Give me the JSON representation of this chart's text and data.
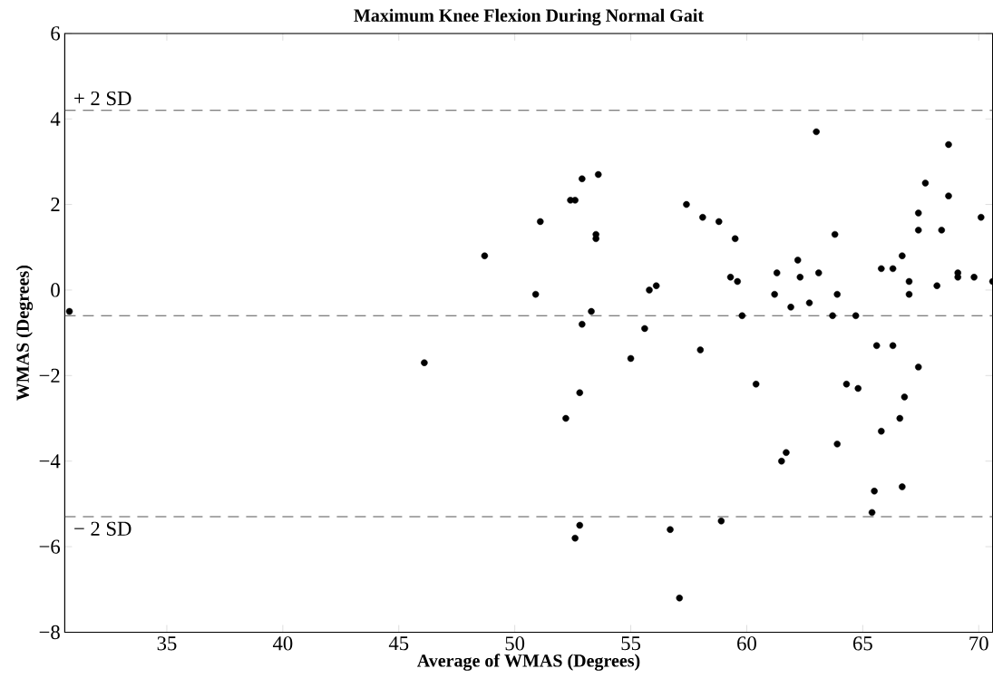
{
  "chart_data": {
    "type": "scatter",
    "title": "Maximum Knee Flexion During Normal Gait",
    "xlabel": "Average of WMAS (Degrees)",
    "ylabel": "WMAS (Degrees)",
    "xlim": [
      30.6,
      70.6
    ],
    "ylim": [
      -8,
      6
    ],
    "xticks": [
      35,
      40,
      45,
      50,
      55,
      60,
      65,
      70
    ],
    "yticks": [
      {
        "value": -8,
        "label": "−8"
      },
      {
        "value": -6,
        "label": "−6"
      },
      {
        "value": -4,
        "label": "−4"
      },
      {
        "value": -2,
        "label": "−2"
      },
      0,
      2,
      4,
      6
    ],
    "marker": "circle",
    "grid": false,
    "ref_lines": [
      {
        "axis": "y",
        "value": 4.2,
        "label": "+ 2 SD",
        "color": "#555555",
        "line_style": "dashed"
      },
      {
        "axis": "y",
        "value": -0.6,
        "color": "#555555",
        "line_style": "dashed"
      },
      {
        "axis": "y",
        "value": -5.3,
        "label": "− 2 SD",
        "color": "#555555",
        "line_style": "dashed"
      }
    ],
    "series": [
      {
        "color": "#000000",
        "x": [
          30.8,
          48.7,
          46.1,
          51.1,
          50.9,
          52.4,
          52.6,
          52.9,
          53.6,
          53.5,
          53.5,
          53.3,
          52.9,
          55.8,
          56.1,
          55.6,
          55.0,
          58.0,
          57.4,
          58.1,
          58.8,
          59.5,
          59.3,
          59.6,
          59.8,
          61.3,
          61.2,
          61.9,
          62.2,
          62.3,
          62.7,
          63.0,
          63.1,
          63.8,
          63.9,
          63.7,
          64.7,
          65.6,
          66.3,
          65.8,
          66.3,
          66.7,
          67.0,
          67.0,
          67.4,
          67.4,
          67.7,
          68.7,
          68.7,
          68.4,
          68.2,
          69.1,
          69.1,
          69.8,
          70.1,
          70.6,
          52.8,
          52.2,
          60.4,
          64.3,
          64.8,
          67.4,
          66.8,
          66.6,
          65.8,
          63.9,
          61.7,
          61.5,
          65.5,
          66.7,
          65.4,
          52.8,
          52.6,
          56.7,
          58.9,
          57.1
        ],
        "values": [
          -0.5,
          0.8,
          -1.7,
          1.6,
          -0.1,
          2.1,
          2.1,
          2.6,
          2.7,
          1.3,
          1.2,
          -0.5,
          -0.8,
          0.0,
          0.1,
          -0.9,
          -1.6,
          -1.4,
          2.0,
          1.7,
          1.6,
          1.2,
          0.3,
          0.2,
          -0.6,
          0.4,
          -0.1,
          -0.4,
          0.7,
          0.3,
          -0.3,
          3.7,
          0.4,
          1.3,
          -0.1,
          -0.6,
          -0.6,
          -1.3,
          -1.3,
          0.5,
          0.5,
          0.8,
          0.2,
          -0.1,
          1.4,
          1.8,
          2.5,
          3.4,
          2.2,
          1.4,
          0.1,
          0.3,
          0.4,
          0.3,
          1.7,
          0.2,
          -2.4,
          -3.0,
          -2.2,
          -2.2,
          -2.3,
          -1.8,
          -2.5,
          -3.0,
          -3.3,
          -3.6,
          -3.8,
          -4.0,
          -4.7,
          -4.6,
          -5.2,
          -5.5,
          -5.8,
          -5.6,
          -5.4,
          -7.2
        ]
      }
    ]
  }
}
